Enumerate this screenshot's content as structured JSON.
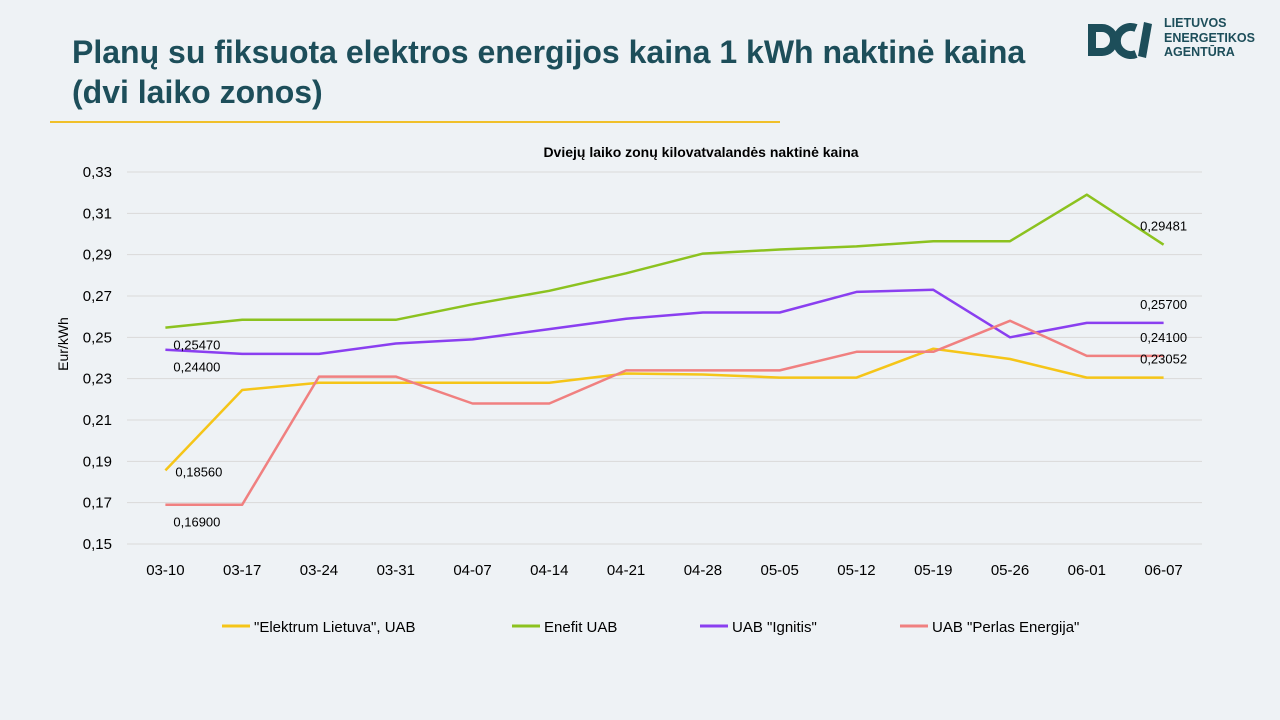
{
  "slide": {
    "title_line1": "Planų su fiksuota elektros energijos kaina 1 kWh naktinė kaina",
    "title_line2": "(dvi laiko zonos)"
  },
  "logo": {
    "line1": "LIETUVOS",
    "line2": "ENERGETIKOS",
    "line3": "AGENTŪRA",
    "color": "#1d4e5a"
  },
  "chart_data": {
    "type": "line",
    "title": "Dviejų laiko zonų kilovatvalandės naktinė kaina",
    "xlabel": "",
    "ylabel": "Eur/kWh",
    "ylim": [
      0.15,
      0.33
    ],
    "y_ticks": [
      "0,15",
      "0,17",
      "0,19",
      "0,21",
      "0,23",
      "0,25",
      "0,27",
      "0,29",
      "0,31",
      "0,33"
    ],
    "grid": true,
    "legend_position": "bottom",
    "categories": [
      "03-10",
      "03-17",
      "03-24",
      "03-31",
      "04-07",
      "04-14",
      "04-21",
      "04-28",
      "05-05",
      "05-12",
      "05-19",
      "05-26",
      "06-01",
      "06-07"
    ],
    "series": [
      {
        "name": "\"Elektrum Lietuva\", UAB",
        "color": "#f5c518",
        "values": [
          0.1856,
          0.2245,
          0.228,
          0.228,
          0.228,
          0.228,
          0.2325,
          0.232,
          0.2305,
          0.2305,
          0.2445,
          0.2395,
          0.23052,
          0.23052
        ]
      },
      {
        "name": "Enefit UAB",
        "color": "#8cc21f",
        "values": [
          0.2547,
          0.2585,
          0.2585,
          0.2585,
          0.266,
          0.2725,
          0.281,
          0.2905,
          0.2925,
          0.294,
          0.2965,
          0.2965,
          0.319,
          0.29481
        ]
      },
      {
        "name": "UAB \"Ignitis\"",
        "color": "#8a3ff0",
        "values": [
          0.244,
          0.242,
          0.242,
          0.247,
          0.249,
          0.254,
          0.259,
          0.262,
          0.262,
          0.272,
          0.273,
          0.25,
          0.257,
          0.257
        ]
      },
      {
        "name": "UAB \"Perlas Energija\"",
        "color": "#f08080",
        "values": [
          0.169,
          0.169,
          0.231,
          0.231,
          0.218,
          0.218,
          0.234,
          0.234,
          0.234,
          0.243,
          0.243,
          0.258,
          0.241,
          0.241
        ]
      }
    ],
    "annotations": [
      {
        "text": "0,25470",
        "series": 1,
        "index": 0,
        "pos": "below-right"
      },
      {
        "text": "0,24400",
        "series": 2,
        "index": 0,
        "pos": "below-right"
      },
      {
        "text": "0,18560",
        "series": 0,
        "index": 0,
        "pos": "right"
      },
      {
        "text": "0,16900",
        "series": 3,
        "index": 0,
        "pos": "below-right"
      },
      {
        "text": "0,29481",
        "series": 1,
        "index": 13,
        "pos": "above"
      },
      {
        "text": "0,25700",
        "series": 2,
        "index": 13,
        "pos": "above-far"
      },
      {
        "text": "0,24100",
        "series": 3,
        "index": 13,
        "pos": "above"
      },
      {
        "text": "0,23052",
        "series": 0,
        "index": 13,
        "pos": "above-low"
      }
    ]
  }
}
